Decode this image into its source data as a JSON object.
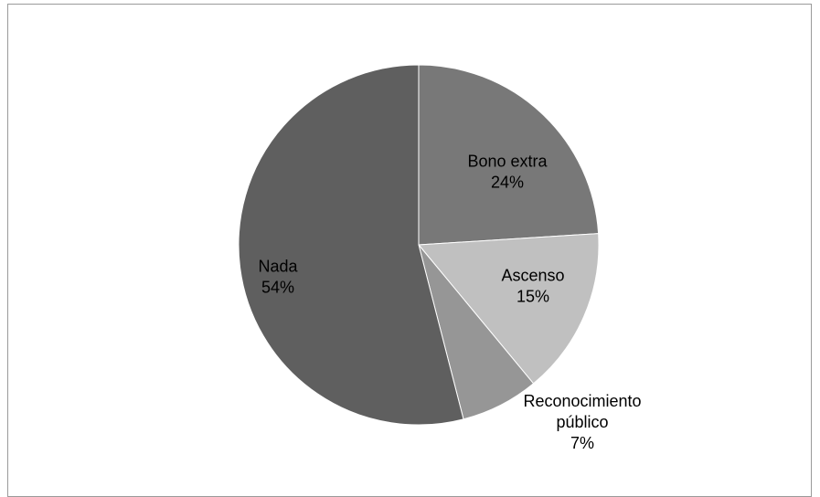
{
  "chart_data": {
    "type": "pie",
    "title": "",
    "slices": [
      {
        "label": "Bono extra",
        "value": 24,
        "label_lines": [
          "Bono extra"
        ],
        "percent_label": "24%",
        "color": "#787878"
      },
      {
        "label": "Ascenso",
        "value": 15,
        "label_lines": [
          "Ascenso"
        ],
        "percent_label": "15%",
        "color": "#c0c0c0"
      },
      {
        "label": "Reconocimiento público",
        "value": 7,
        "label_lines": [
          "Reconocimiento",
          "público"
        ],
        "percent_label": "7%",
        "color": "#969696"
      },
      {
        "label": "Nada",
        "value": 54,
        "label_lines": [
          "Nada"
        ],
        "percent_label": "54%",
        "color": "#5f5f5f"
      }
    ],
    "start_angle": "12 o'clock",
    "direction": "clockwise",
    "legend": "none"
  }
}
